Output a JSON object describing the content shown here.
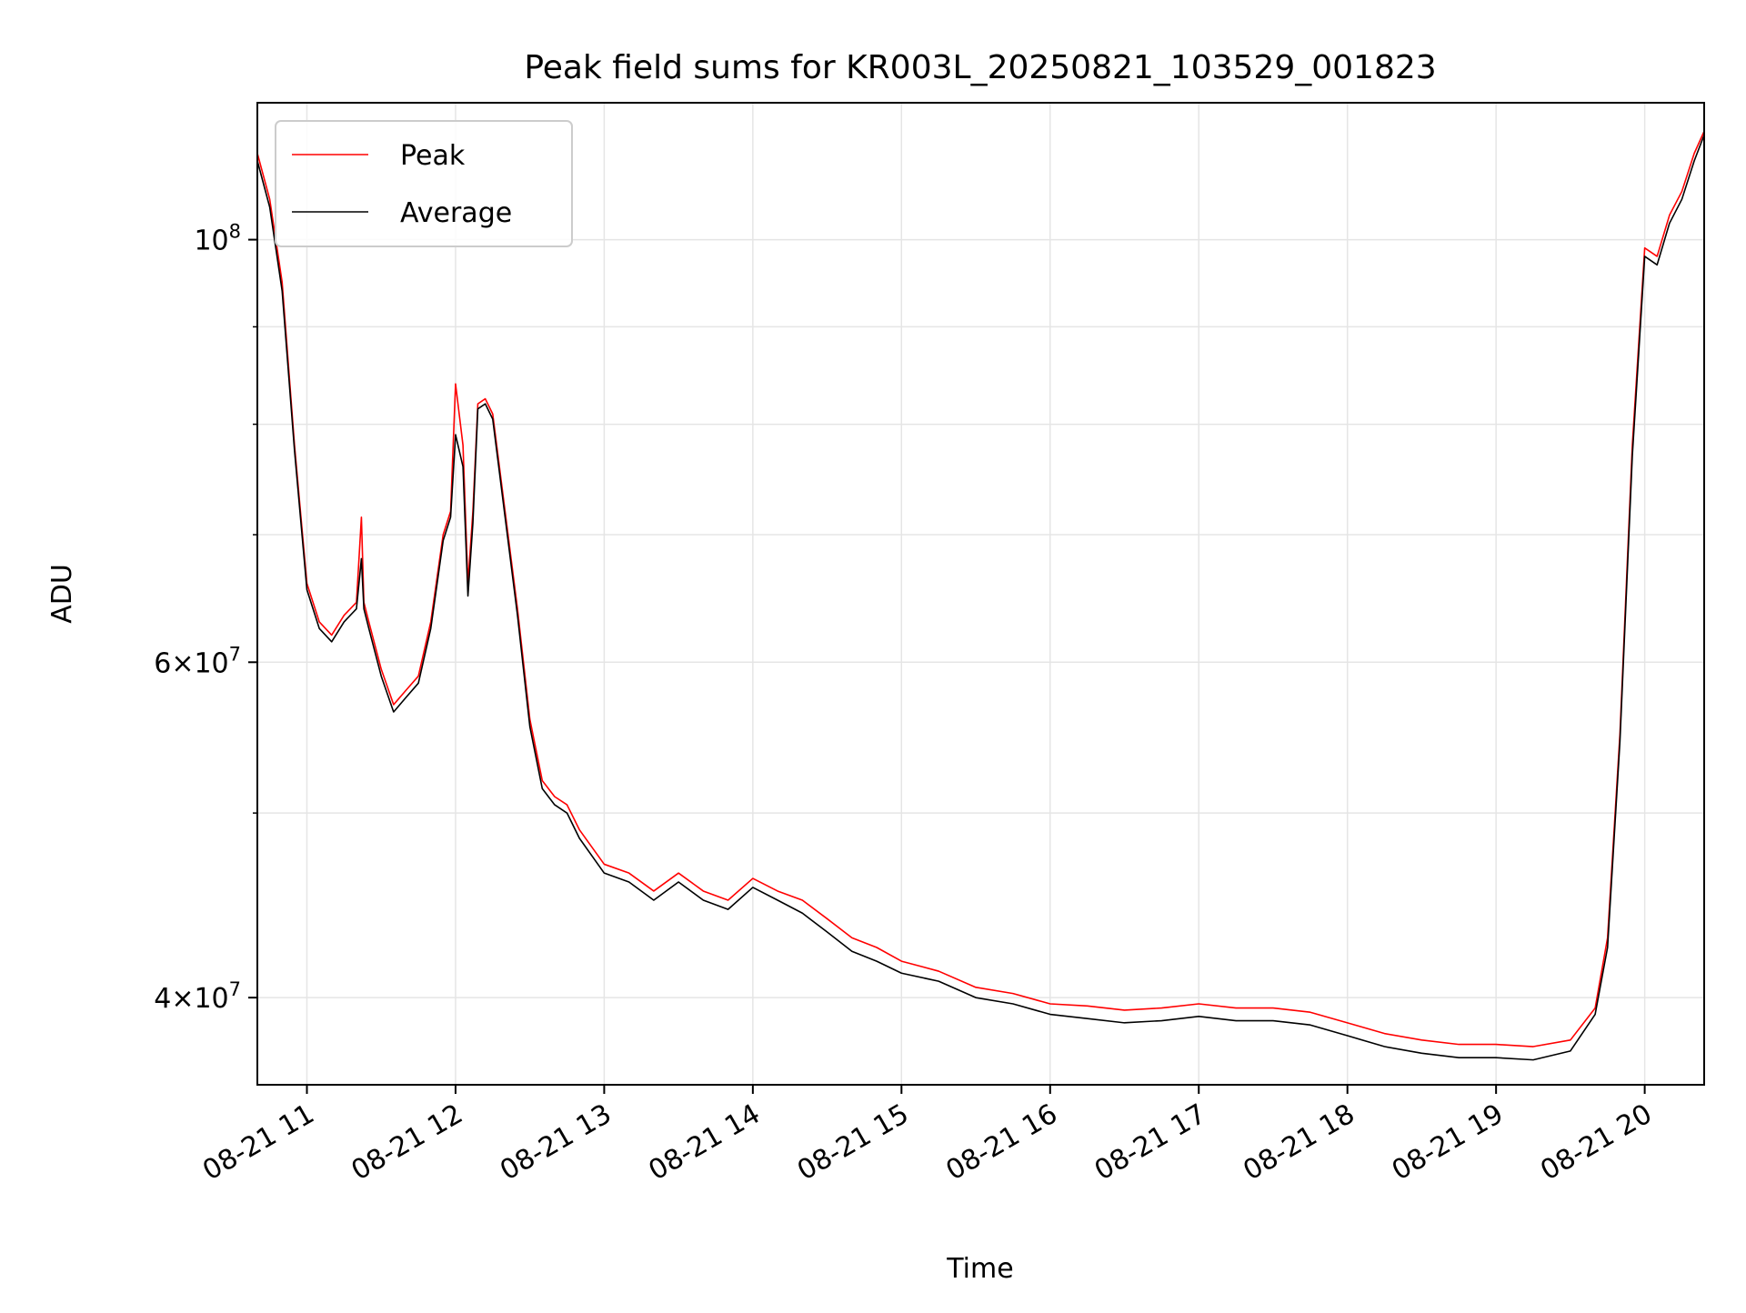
{
  "chart_data": {
    "type": "line",
    "title": "Peak field sums for KR003L_20250821_103529_001823",
    "xlabel": "Time",
    "ylabel": "ADU",
    "yscale": "log",
    "ylim": [
      36000000,
      118000000
    ],
    "xlim": [
      "2025-08-21 10:40",
      "2025-08-21 20:24"
    ],
    "xticks": [
      {
        "x": "2025-08-21 11:00",
        "label": "08-21 11"
      },
      {
        "x": "2025-08-21 12:00",
        "label": "08-21 12"
      },
      {
        "x": "2025-08-21 13:00",
        "label": "08-21 13"
      },
      {
        "x": "2025-08-21 14:00",
        "label": "08-21 14"
      },
      {
        "x": "2025-08-21 15:00",
        "label": "08-21 15"
      },
      {
        "x": "2025-08-21 16:00",
        "label": "08-21 16"
      },
      {
        "x": "2025-08-21 17:00",
        "label": "08-21 17"
      },
      {
        "x": "2025-08-21 18:00",
        "label": "08-21 18"
      },
      {
        "x": "2025-08-21 19:00",
        "label": "08-21 19"
      },
      {
        "x": "2025-08-21 20:00",
        "label": "08-21 20"
      }
    ],
    "yticks_major": [
      {
        "value": 40000000,
        "base": "4",
        "sup": "7"
      },
      {
        "value": 60000000,
        "base": "6",
        "sup": "7"
      },
      {
        "value": 100000000,
        "base": "10",
        "sup": "8"
      }
    ],
    "yticks_minor": [
      50000000,
      70000000,
      80000000,
      90000000
    ],
    "grid": true,
    "legend_position": "top-left",
    "series": [
      {
        "name": "Peak",
        "color": "#ff0000",
        "x": [
          "2025-08-21 10:40",
          "2025-08-21 10:45",
          "2025-08-21 10:50",
          "2025-08-21 10:55",
          "2025-08-21 11:00",
          "2025-08-21 11:05",
          "2025-08-21 11:10",
          "2025-08-21 11:15",
          "2025-08-21 11:20",
          "2025-08-21 11:22",
          "2025-08-21 11:23",
          "2025-08-21 11:25",
          "2025-08-21 11:30",
          "2025-08-21 11:35",
          "2025-08-21 11:40",
          "2025-08-21 11:45",
          "2025-08-21 11:50",
          "2025-08-21 11:55",
          "2025-08-21 11:58",
          "2025-08-21 12:00",
          "2025-08-21 12:03",
          "2025-08-21 12:05",
          "2025-08-21 12:07",
          "2025-08-21 12:09",
          "2025-08-21 12:12",
          "2025-08-21 12:15",
          "2025-08-21 12:20",
          "2025-08-21 12:25",
          "2025-08-21 12:30",
          "2025-08-21 12:35",
          "2025-08-21 12:40",
          "2025-08-21 12:45",
          "2025-08-21 12:50",
          "2025-08-21 13:00",
          "2025-08-21 13:10",
          "2025-08-21 13:20",
          "2025-08-21 13:30",
          "2025-08-21 13:40",
          "2025-08-21 13:50",
          "2025-08-21 14:00",
          "2025-08-21 14:10",
          "2025-08-21 14:20",
          "2025-08-21 14:30",
          "2025-08-21 14:40",
          "2025-08-21 14:50",
          "2025-08-21 15:00",
          "2025-08-21 15:15",
          "2025-08-21 15:30",
          "2025-08-21 15:45",
          "2025-08-21 16:00",
          "2025-08-21 16:15",
          "2025-08-21 16:30",
          "2025-08-21 16:45",
          "2025-08-21 17:00",
          "2025-08-21 17:15",
          "2025-08-21 17:30",
          "2025-08-21 17:45",
          "2025-08-21 18:00",
          "2025-08-21 18:15",
          "2025-08-21 18:30",
          "2025-08-21 18:45",
          "2025-08-21 19:00",
          "2025-08-21 19:15",
          "2025-08-21 19:30",
          "2025-08-21 19:40",
          "2025-08-21 19:45",
          "2025-08-21 19:50",
          "2025-08-21 19:55",
          "2025-08-21 20:00",
          "2025-08-21 20:05",
          "2025-08-21 20:10",
          "2025-08-21 20:15",
          "2025-08-21 20:20",
          "2025-08-21 20:24"
        ],
        "y": [
          111000000,
          105000000,
          95000000,
          78000000,
          66000000,
          63000000,
          62000000,
          63500000,
          64500000,
          71500000,
          64500000,
          63000000,
          59500000,
          57000000,
          58000000,
          59000000,
          63000000,
          70000000,
          72000000,
          84000000,
          78000000,
          66000000,
          72000000,
          82000000,
          82500000,
          81000000,
          72000000,
          64000000,
          56000000,
          52000000,
          51000000,
          50500000,
          49000000,
          47000000,
          46500000,
          45500000,
          46500000,
          45500000,
          45000000,
          46200000,
          45500000,
          45000000,
          44000000,
          43000000,
          42500000,
          41800000,
          41300000,
          40500000,
          40200000,
          39700000,
          39600000,
          39400000,
          39500000,
          39700000,
          39500000,
          39500000,
          39300000,
          38800000,
          38300000,
          38000000,
          37800000,
          37800000,
          37700000,
          38000000,
          39500000,
          43000000,
          55000000,
          78000000,
          99000000,
          98000000,
          103000000,
          106000000,
          111000000,
          114000000
        ]
      },
      {
        "name": "Average",
        "color": "#000000",
        "x": [
          "2025-08-21 10:40",
          "2025-08-21 10:45",
          "2025-08-21 10:50",
          "2025-08-21 10:55",
          "2025-08-21 11:00",
          "2025-08-21 11:05",
          "2025-08-21 11:10",
          "2025-08-21 11:15",
          "2025-08-21 11:20",
          "2025-08-21 11:22",
          "2025-08-21 11:23",
          "2025-08-21 11:25",
          "2025-08-21 11:30",
          "2025-08-21 11:35",
          "2025-08-21 11:40",
          "2025-08-21 11:45",
          "2025-08-21 11:50",
          "2025-08-21 11:55",
          "2025-08-21 11:58",
          "2025-08-21 12:00",
          "2025-08-21 12:03",
          "2025-08-21 12:05",
          "2025-08-21 12:07",
          "2025-08-21 12:09",
          "2025-08-21 12:12",
          "2025-08-21 12:15",
          "2025-08-21 12:20",
          "2025-08-21 12:25",
          "2025-08-21 12:30",
          "2025-08-21 12:35",
          "2025-08-21 12:40",
          "2025-08-21 12:45",
          "2025-08-21 12:50",
          "2025-08-21 13:00",
          "2025-08-21 13:10",
          "2025-08-21 13:20",
          "2025-08-21 13:30",
          "2025-08-21 13:40",
          "2025-08-21 13:50",
          "2025-08-21 14:00",
          "2025-08-21 14:10",
          "2025-08-21 14:20",
          "2025-08-21 14:30",
          "2025-08-21 14:40",
          "2025-08-21 14:50",
          "2025-08-21 15:00",
          "2025-08-21 15:15",
          "2025-08-21 15:30",
          "2025-08-21 15:45",
          "2025-08-21 16:00",
          "2025-08-21 16:15",
          "2025-08-21 16:30",
          "2025-08-21 16:45",
          "2025-08-21 17:00",
          "2025-08-21 17:15",
          "2025-08-21 17:30",
          "2025-08-21 17:45",
          "2025-08-21 18:00",
          "2025-08-21 18:15",
          "2025-08-21 18:30",
          "2025-08-21 18:45",
          "2025-08-21 19:00",
          "2025-08-21 19:15",
          "2025-08-21 19:30",
          "2025-08-21 19:40",
          "2025-08-21 19:45",
          "2025-08-21 19:50",
          "2025-08-21 19:55",
          "2025-08-21 20:00",
          "2025-08-21 20:05",
          "2025-08-21 20:10",
          "2025-08-21 20:15",
          "2025-08-21 20:20",
          "2025-08-21 20:24"
        ],
        "y": [
          110000000,
          104000000,
          94000000,
          77500000,
          65500000,
          62500000,
          61500000,
          63000000,
          64000000,
          68000000,
          64000000,
          62500000,
          59000000,
          56500000,
          57500000,
          58500000,
          62500000,
          69500000,
          71500000,
          79000000,
          76000000,
          65000000,
          71000000,
          81500000,
          82000000,
          80500000,
          71500000,
          63500000,
          55500000,
          51500000,
          50500000,
          50000000,
          48500000,
          46500000,
          46000000,
          45000000,
          46000000,
          45000000,
          44500000,
          45700000,
          45000000,
          44300000,
          43300000,
          42300000,
          41800000,
          41200000,
          40800000,
          40000000,
          39700000,
          39200000,
          39000000,
          38800000,
          38900000,
          39100000,
          38900000,
          38900000,
          38700000,
          38200000,
          37700000,
          37400000,
          37200000,
          37200000,
          37100000,
          37500000,
          39200000,
          42500000,
          54500000,
          77000000,
          98000000,
          97000000,
          102000000,
          105000000,
          110000000,
          113500000
        ]
      }
    ]
  }
}
